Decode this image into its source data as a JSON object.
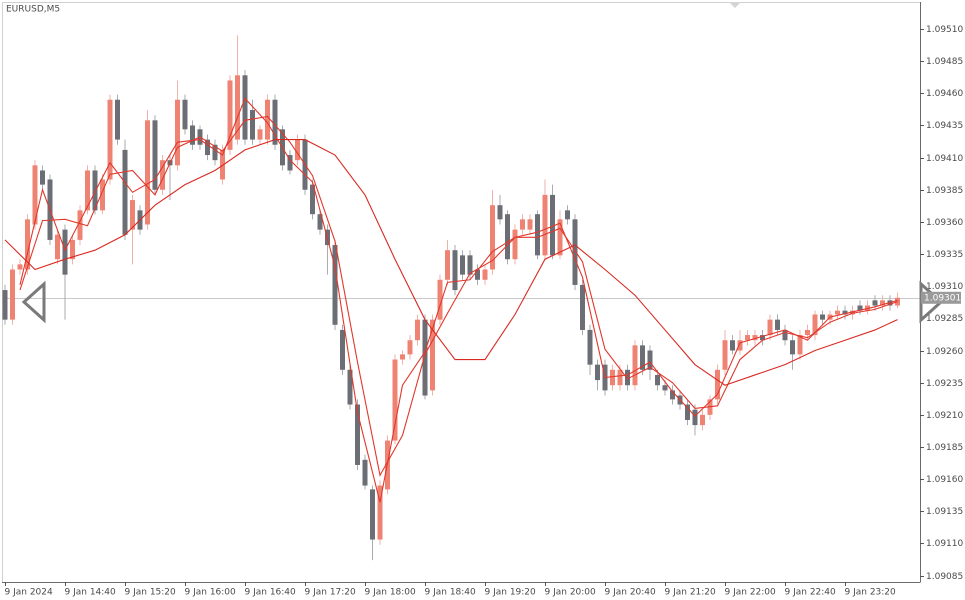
{
  "chart_data": {
    "type": "candlestick",
    "title": "EURUSD,M5",
    "categories": [
      "9 Jan 2024",
      null,
      null,
      null,
      null,
      null,
      null,
      null,
      "9 Jan 14:40",
      null,
      null,
      null,
      null,
      null,
      null,
      null,
      "9 Jan 15:20",
      null,
      null,
      null,
      null,
      null,
      null,
      null,
      "9 Jan 16:00",
      null,
      null,
      null,
      null,
      null,
      null,
      null,
      "9 Jan 16:40",
      null,
      null,
      null,
      null,
      null,
      null,
      null,
      "9 Jan 17:20",
      null,
      null,
      null,
      null,
      null,
      null,
      null,
      "9 Jan 18:00",
      null,
      null,
      null,
      null,
      null,
      null,
      null,
      "9 Jan 18:40",
      null,
      null,
      null,
      null,
      null,
      null,
      null,
      "9 Jan 19:20",
      null,
      null,
      null,
      null,
      null,
      null,
      null,
      "9 Jan 20:00",
      null,
      null,
      null,
      null,
      null,
      null,
      null,
      "9 Jan 20:40",
      null,
      null,
      null,
      null,
      null,
      null,
      null,
      "9 Jan 21:20",
      null,
      null,
      null,
      null,
      null,
      null,
      null,
      "9 Jan 22:00",
      null,
      null,
      null,
      null,
      null,
      null,
      null,
      "9 Jan 22:40",
      null,
      null,
      null,
      null,
      null,
      null,
      null,
      "9 Jan 23:20",
      null,
      null,
      null,
      null,
      null,
      null,
      null
    ],
    "open": [
      1.09307,
      1.09284,
      1.09323,
      1.09323,
      1.09358,
      1.094,
      1.09393,
      1.09331,
      1.09354,
      1.09331,
      1.09346,
      1.09369,
      1.094,
      1.09369,
      1.09393,
      1.09455,
      1.09416,
      1.09354,
      1.09369,
      1.09358,
      1.09439,
      1.09385,
      1.09408,
      1.09404,
      1.09455,
      1.09435,
      1.09432,
      1.09424,
      1.0942,
      1.09393,
      1.09416,
      1.09424,
      1.09474,
      1.09447,
      1.09424,
      1.09424,
      1.09455,
      1.09432,
      1.09412,
      1.09408,
      1.09424,
      1.09389,
      1.09366,
      1.09354,
      1.09342,
      1.09276,
      1.09245,
      1.09218,
      1.09175,
      1.09152,
      1.09113,
      1.09152,
      1.0919,
      1.09253,
      1.09257,
      1.09268,
      1.09284,
      1.09229,
      1.09284,
      1.09315,
      1.09338,
      1.09334,
      1.09334,
      1.09323,
      1.09315,
      1.09323,
      1.09373,
      1.09366,
      1.09331,
      1.09354,
      1.09354,
      1.09366,
      1.09334,
      1.09381,
      1.09334,
      1.09369,
      1.09362,
      1.09311,
      1.09276,
      1.09249,
      1.09249,
      1.09233,
      1.09233,
      1.09245,
      1.09233,
      1.09264,
      1.0926,
      1.09241,
      1.09233,
      1.09229,
      1.09225,
      1.09218,
      1.09214,
      1.09202,
      1.0921,
      1.09222,
      1.09245,
      1.09268,
      1.0926,
      1.09268,
      1.09268,
      1.09272,
      1.09272,
      1.09284,
      1.09276,
      1.09268,
      1.09257,
      1.09272,
      1.09272,
      1.09288,
      1.09284,
      1.09288,
      1.09291,
      1.09288,
      1.09295,
      1.09291,
      1.09299,
      1.09295,
      1.09299,
      1.09295
    ],
    "high": [
      1.09311,
      1.09327,
      1.09331,
      1.09366,
      1.09408,
      1.09404,
      1.09397,
      1.09354,
      1.09358,
      1.0935,
      1.09373,
      1.09404,
      1.09404,
      1.09397,
      1.09459,
      1.09459,
      1.09424,
      1.09381,
      1.09373,
      1.09447,
      1.09443,
      1.09412,
      1.09412,
      1.0947,
      1.09459,
      1.09439,
      1.09435,
      1.09428,
      1.09424,
      1.0942,
      1.09474,
      1.09505,
      1.09478,
      1.09455,
      1.09435,
      1.09459,
      1.09459,
      1.09435,
      1.09416,
      1.09428,
      1.09428,
      1.09393,
      1.09369,
      1.09358,
      1.09346,
      1.0928,
      1.09249,
      1.09222,
      1.09179,
      1.09155,
      1.09159,
      1.09194,
      1.09257,
      1.0926,
      1.09272,
      1.09288,
      1.09288,
      1.09288,
      1.09319,
      1.09346,
      1.09342,
      1.09338,
      1.09338,
      1.09327,
      1.09327,
      1.09385,
      1.09381,
      1.09369,
      1.09358,
      1.09366,
      1.09366,
      1.09369,
      1.09393,
      1.09389,
      1.09369,
      1.09373,
      1.09366,
      1.09315,
      1.0928,
      1.09253,
      1.09253,
      1.09249,
      1.09249,
      1.09249,
      1.09268,
      1.09268,
      1.09264,
      1.09245,
      1.09237,
      1.09233,
      1.09229,
      1.09222,
      1.09218,
      1.09214,
      1.09225,
      1.09249,
      1.09276,
      1.09272,
      1.09276,
      1.09276,
      1.09276,
      1.09276,
      1.09288,
      1.09288,
      1.0928,
      1.09272,
      1.09276,
      1.0928,
      1.09291,
      1.09291,
      1.09291,
      1.09295,
      1.09295,
      1.09295,
      1.09299,
      1.09299,
      1.09303,
      1.09303,
      1.09303,
      1.09305
    ],
    "low": [
      1.0928,
      1.0928,
      1.09319,
      1.09319,
      1.09354,
      1.09385,
      1.09342,
      1.09327,
      1.09284,
      1.09327,
      1.09342,
      1.09366,
      1.09366,
      1.09366,
      1.09389,
      1.0942,
      1.09346,
      1.09327,
      1.0935,
      1.09354,
      1.09381,
      1.09381,
      1.09377,
      1.094,
      1.09428,
      1.09416,
      1.09416,
      1.09408,
      1.09404,
      1.09389,
      1.09412,
      1.0942,
      1.0942,
      1.0942,
      1.0942,
      1.0942,
      1.09416,
      1.094,
      1.09397,
      1.09404,
      1.09381,
      1.09362,
      1.0935,
      1.09319,
      1.09276,
      1.09241,
      1.09214,
      1.09167,
      1.09152,
      1.09097,
      1.09109,
      1.09148,
      1.09187,
      1.09249,
      1.09253,
      1.09264,
      1.09222,
      1.09225,
      1.0928,
      1.09311,
      1.09303,
      1.09315,
      1.09315,
      1.09311,
      1.09311,
      1.09319,
      1.09358,
      1.09327,
      1.09327,
      1.0935,
      1.0935,
      1.09331,
      1.09331,
      1.09331,
      1.09331,
      1.09358,
      1.09307,
      1.09272,
      1.09241,
      1.09229,
      1.09225,
      1.09229,
      1.09229,
      1.09229,
      1.09229,
      1.09241,
      1.09237,
      1.09229,
      1.09225,
      1.09218,
      1.09214,
      1.09202,
      1.09194,
      1.09198,
      1.09206,
      1.09218,
      1.09241,
      1.09257,
      1.09257,
      1.09264,
      1.09264,
      1.09264,
      1.09268,
      1.09272,
      1.09264,
      1.09245,
      1.09253,
      1.09268,
      1.09268,
      1.0928,
      1.0928,
      1.09284,
      1.09284,
      1.09284,
      1.09288,
      1.09288,
      1.09291,
      1.09291,
      1.09291,
      1.09293
    ],
    "close": [
      1.09284,
      1.09323,
      1.09327,
      1.09362,
      1.09404,
      1.09389,
      1.09346,
      1.0935,
      1.09319,
      1.09346,
      1.09369,
      1.094,
      1.09369,
      1.09393,
      1.09455,
      1.09424,
      1.0935,
      1.09377,
      1.09354,
      1.09439,
      1.09385,
      1.09408,
      1.09404,
      1.09455,
      1.09432,
      1.0942,
      1.0942,
      1.09412,
      1.09408,
      1.09416,
      1.0947,
      1.09474,
      1.09424,
      1.09424,
      1.09432,
      1.09455,
      1.0942,
      1.09404,
      1.094,
      1.09424,
      1.09385,
      1.09366,
      1.09354,
      1.09342,
      1.0928,
      1.09245,
      1.09218,
      1.09171,
      1.09155,
      1.09113,
      1.09155,
      1.0919,
      1.09253,
      1.09257,
      1.09268,
      1.09284,
      1.09225,
      1.09284,
      1.09315,
      1.09338,
      1.09307,
      1.09319,
      1.09319,
      1.09315,
      1.09323,
      1.09373,
      1.09362,
      1.09331,
      1.09354,
      1.09362,
      1.09362,
      1.09334,
      1.09381,
      1.09334,
      1.09362,
      1.09362,
      1.09311,
      1.09276,
      1.09249,
      1.09237,
      1.09229,
      1.09245,
      1.09245,
      1.09233,
      1.09264,
      1.09245,
      1.09245,
      1.09233,
      1.09229,
      1.09222,
      1.09218,
      1.09206,
      1.09202,
      1.0921,
      1.09222,
      1.09245,
      1.09268,
      1.0926,
      1.09268,
      1.09272,
      1.09272,
      1.09268,
      1.09284,
      1.09276,
      1.09268,
      1.09257,
      1.09272,
      1.09276,
      1.09288,
      1.09284,
      1.09288,
      1.09291,
      1.09288,
      1.09291,
      1.09291,
      1.09295,
      1.09295,
      1.09299,
      1.09295,
      1.09301
    ],
    "up_color": "#ef8373",
    "down_color": "#6b6e74",
    "lines": [
      {
        "color": "#e2372c",
        "x": [
          2,
          5,
          8,
          11,
          14,
          17,
          20,
          23,
          26,
          29,
          32,
          35,
          38,
          41,
          44,
          47,
          50,
          53,
          56,
          59,
          62,
          65,
          68,
          71,
          74,
          77,
          80,
          83,
          86,
          89,
          92,
          95,
          98,
          101,
          104,
          107,
          110,
          113,
          116,
          119
        ],
        "values": [
          1.09311,
          1.09385,
          1.09338,
          1.09372,
          1.09406,
          1.09383,
          1.09393,
          1.09422,
          1.09424,
          1.09412,
          1.09456,
          1.09437,
          1.09408,
          1.09391,
          1.09325,
          1.09212,
          1.09142,
          1.09233,
          1.09259,
          1.09313,
          1.09315,
          1.09337,
          1.09348,
          1.09352,
          1.09359,
          1.09317,
          1.09239,
          1.09241,
          1.09251,
          1.09228,
          1.09209,
          1.09226,
          1.09266,
          1.09271,
          1.09276,
          1.09268,
          1.09286,
          1.0929,
          1.09294,
          1.09299
        ]
      },
      {
        "color": "#e2372c",
        "x": [
          2,
          5,
          8,
          11,
          14,
          17,
          20,
          23,
          26,
          29,
          32,
          35,
          38,
          41,
          44,
          47,
          50,
          53,
          56,
          59,
          62,
          65,
          68,
          71,
          74,
          77,
          80,
          83,
          86,
          89,
          92,
          95,
          98,
          101,
          104,
          107,
          110,
          113,
          116,
          119
        ],
        "values": [
          1.09307,
          1.09361,
          1.09362,
          1.09357,
          1.09397,
          1.094,
          1.09381,
          1.09418,
          1.09426,
          1.09415,
          1.09439,
          1.09442,
          1.09422,
          1.09396,
          1.09345,
          1.09251,
          1.09163,
          1.09194,
          1.09257,
          1.09289,
          1.0932,
          1.0933,
          1.09348,
          1.09348,
          1.09355,
          1.09329,
          1.09261,
          1.09238,
          1.09247,
          1.09235,
          1.09215,
          1.09217,
          1.09253,
          1.09268,
          1.09274,
          1.0927,
          1.09282,
          1.09289,
          1.09292,
          1.09298
        ]
      },
      {
        "color": "#d92a22",
        "x": [
          0,
          4,
          8,
          12,
          16,
          20,
          24,
          28,
          32,
          36,
          40,
          44,
          48,
          52,
          56,
          60,
          64,
          68,
          72,
          76,
          80,
          84,
          88,
          92,
          96,
          100,
          104,
          108,
          112,
          116,
          119
        ],
        "values": [
          1.09346,
          1.09323,
          1.09331,
          1.09338,
          1.0935,
          1.09373,
          1.09389,
          1.094,
          1.09416,
          1.09424,
          1.09424,
          1.09412,
          1.09381,
          1.09331,
          1.09284,
          1.09253,
          1.09253,
          1.09288,
          1.09331,
          1.09342,
          1.09323,
          1.09303,
          1.09276,
          1.09249,
          1.09233,
          1.09241,
          1.09249,
          1.0926,
          1.09268,
          1.09276,
          1.09284
        ]
      }
    ],
    "last_price": 1.09301,
    "ylim": [
      1.0908,
      1.09531
    ],
    "yticks": [
      {
        "value": 1.0951,
        "label": "1.09510"
      },
      1.09485,
      {
        "value": 1.0946,
        "label": "1.09460"
      },
      1.09435,
      {
        "value": 1.0941,
        "label": "1.09410"
      },
      1.09385,
      {
        "value": 1.0936,
        "label": "1.09360"
      },
      1.09335,
      {
        "value": 1.0931,
        "label": "1.09310"
      },
      1.09285,
      {
        "value": 1.0926,
        "label": "1.09260"
      },
      1.09235,
      {
        "value": 1.0921,
        "label": "1.09210"
      },
      1.09185,
      {
        "value": 1.0916,
        "label": "1.09160"
      },
      1.09135,
      {
        "value": 1.0911,
        "label": "1.09110"
      },
      1.09085
    ]
  }
}
